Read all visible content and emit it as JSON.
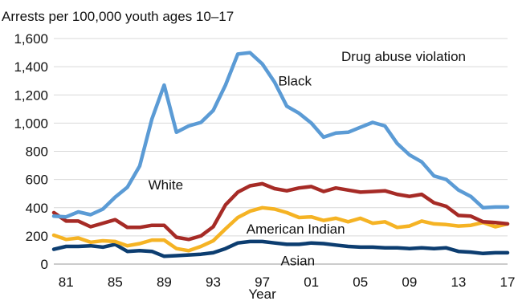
{
  "chart_data": {
    "type": "line",
    "ylabel": "Arrests per 100,000 youth ages 10–17",
    "xlabel": "Year",
    "annotation": "Drug abuse violation",
    "ylim": [
      0,
      1600
    ],
    "yticks": [
      0,
      200,
      400,
      600,
      800,
      1000,
      1200,
      1400,
      1600
    ],
    "ytick_labels": [
      "0",
      "200",
      "400",
      "600",
      "800",
      "1,000",
      "1,200",
      "1,400",
      "1,600"
    ],
    "xlim": [
      1980,
      2017
    ],
    "xticks": [
      1981,
      1985,
      1989,
      1993,
      1997,
      2001,
      2005,
      2009,
      2013,
      2017
    ],
    "xtick_labels": [
      "81",
      "85",
      "89",
      "93",
      "97",
      "01",
      "05",
      "09",
      "13",
      "17"
    ],
    "grid": true,
    "x": [
      1980,
      1981,
      1982,
      1983,
      1984,
      1985,
      1986,
      1987,
      1988,
      1989,
      1990,
      1991,
      1992,
      1993,
      1994,
      1995,
      1996,
      1997,
      1998,
      1999,
      2000,
      2001,
      2002,
      2003,
      2004,
      2005,
      2006,
      2007,
      2008,
      2009,
      2010,
      2011,
      2012,
      2013,
      2014,
      2015,
      2016,
      2017
    ],
    "series": [
      {
        "name": "Black",
        "color": "#5b9bd5",
        "values": [
          340,
          335,
          370,
          350,
          390,
          475,
          545,
          695,
          1030,
          1270,
          935,
          980,
          1005,
          1090,
          1270,
          1490,
          1500,
          1420,
          1290,
          1120,
          1070,
          1000,
          900,
          930,
          935,
          970,
          1005,
          980,
          855,
          775,
          725,
          625,
          600,
          525,
          480,
          400,
          405,
          405
        ]
      },
      {
        "name": "White",
        "color": "#a62b26",
        "values": [
          365,
          305,
          305,
          265,
          290,
          315,
          260,
          260,
          275,
          275,
          190,
          175,
          200,
          265,
          420,
          510,
          555,
          570,
          535,
          520,
          540,
          550,
          515,
          540,
          525,
          510,
          515,
          520,
          495,
          480,
          495,
          435,
          410,
          345,
          340,
          300,
          295,
          285
        ]
      },
      {
        "name": "American Indian",
        "color": "#f5b324",
        "values": [
          205,
          175,
          185,
          155,
          165,
          160,
          130,
          145,
          170,
          170,
          110,
          95,
          125,
          165,
          250,
          330,
          375,
          400,
          390,
          365,
          330,
          335,
          310,
          325,
          300,
          325,
          290,
          300,
          260,
          270,
          305,
          285,
          280,
          270,
          275,
          295,
          265,
          285
        ]
      },
      {
        "name": "Asian",
        "color": "#0c3d70",
        "values": [
          105,
          125,
          125,
          130,
          120,
          140,
          90,
          95,
          90,
          55,
          60,
          65,
          70,
          80,
          110,
          150,
          160,
          160,
          150,
          140,
          140,
          150,
          145,
          135,
          125,
          120,
          120,
          115,
          115,
          110,
          115,
          110,
          115,
          90,
          85,
          75,
          80,
          80
        ]
      }
    ]
  }
}
